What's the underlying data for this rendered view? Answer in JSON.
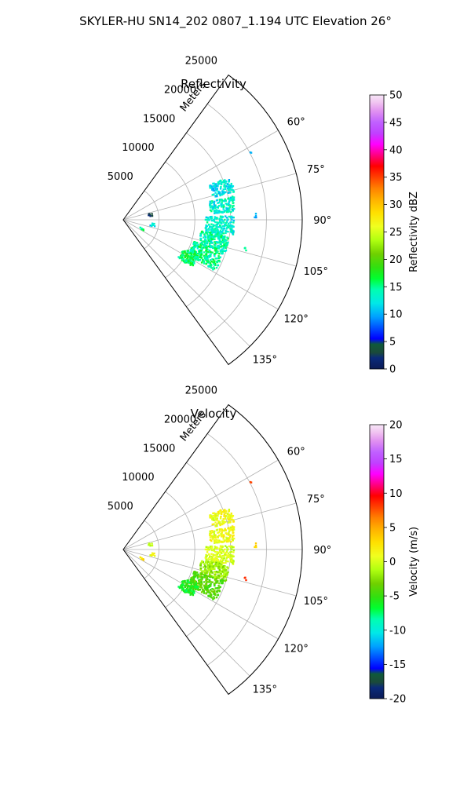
{
  "figure": {
    "title": "SKYLER-HU  SN14_202  0807_1.194 UTC Elevation 26°"
  },
  "chart_data": [
    {
      "type": "polar",
      "title": "Reflectivity",
      "radial_label": "Meters",
      "radial_ticks": [
        5000,
        10000,
        15000,
        20000,
        25000
      ],
      "angular_ticks": [
        "60°",
        "75°",
        "90°",
        "105°",
        "120°",
        "135°"
      ],
      "theta_range_deg": [
        36,
        144
      ],
      "r_max": 25000,
      "grid": true,
      "colorbar": {
        "label": "Reflectivity dBZ",
        "ticks": [
          0,
          5,
          10,
          15,
          20,
          25,
          30,
          35,
          40,
          45,
          50
        ],
        "range": [
          0,
          50
        ]
      },
      "field_note": "echo values mostly 10–15 dBZ, some near 5 dBZ",
      "echo_blobs": [
        {
          "theta": 72,
          "r": 14500,
          "dth": 4,
          "dr": 1600,
          "n": 120,
          "val": 12
        },
        {
          "theta": 82,
          "r": 14000,
          "dth": 4,
          "dr": 1800,
          "n": 140,
          "val": 13
        },
        {
          "theta": 93,
          "r": 13500,
          "dth": 5,
          "dr": 2000,
          "n": 180,
          "val": 13
        },
        {
          "theta": 103,
          "r": 13000,
          "dth": 5,
          "dr": 2000,
          "n": 200,
          "val": 14
        },
        {
          "theta": 113,
          "r": 12500,
          "dth": 6,
          "dr": 2200,
          "n": 240,
          "val": 15
        },
        {
          "theta": 120,
          "r": 10500,
          "dth": 5,
          "dr": 1200,
          "n": 100,
          "val": 16
        },
        {
          "theta": 80,
          "r": 3500,
          "dth": 3,
          "dr": 600,
          "n": 6,
          "val": 4
        },
        {
          "theta": 100,
          "r": 4000,
          "dth": 3,
          "dr": 500,
          "n": 8,
          "val": 12
        },
        {
          "theta": 115,
          "r": 3000,
          "dth": 3,
          "dr": 400,
          "n": 5,
          "val": 14
        },
        {
          "theta": 88,
          "r": 18500,
          "dth": 1,
          "dr": 200,
          "n": 4,
          "val": 11
        },
        {
          "theta": 103,
          "r": 17500,
          "dth": 1,
          "dr": 200,
          "n": 3,
          "val": 14
        },
        {
          "theta": 63,
          "r": 20000,
          "dth": 1,
          "dr": 200,
          "n": 2,
          "val": 12
        }
      ]
    },
    {
      "type": "polar",
      "title": "Velocity",
      "radial_label": "Meters",
      "radial_ticks": [
        5000,
        10000,
        15000,
        20000,
        25000
      ],
      "angular_ticks": [
        "60°",
        "75°",
        "90°",
        "105°",
        "120°",
        "135°"
      ],
      "theta_range_deg": [
        36,
        144
      ],
      "r_max": 25000,
      "grid": true,
      "colorbar": {
        "label": "Velocity (m/s)",
        "ticks": [
          -20,
          -15,
          -10,
          -5,
          0,
          5,
          10,
          15,
          20
        ],
        "range": [
          -20,
          20
        ]
      },
      "field_note": "velocities mostly 0 to 2 m/s in the north, -2 to -6 m/s in the south",
      "echo_blobs": [
        {
          "theta": 72,
          "r": 14500,
          "dth": 4,
          "dr": 1600,
          "n": 120,
          "val": 1
        },
        {
          "theta": 82,
          "r": 14000,
          "dth": 4,
          "dr": 1800,
          "n": 140,
          "val": 1
        },
        {
          "theta": 93,
          "r": 13500,
          "dth": 5,
          "dr": 2000,
          "n": 180,
          "val": 0
        },
        {
          "theta": 103,
          "r": 13000,
          "dth": 5,
          "dr": 2000,
          "n": 200,
          "val": -2
        },
        {
          "theta": 113,
          "r": 12500,
          "dth": 6,
          "dr": 2200,
          "n": 240,
          "val": -4
        },
        {
          "theta": 120,
          "r": 10500,
          "dth": 5,
          "dr": 1200,
          "n": 100,
          "val": -6
        },
        {
          "theta": 80,
          "r": 3500,
          "dth": 3,
          "dr": 600,
          "n": 6,
          "val": 0
        },
        {
          "theta": 100,
          "r": 4000,
          "dth": 3,
          "dr": 500,
          "n": 8,
          "val": 1
        },
        {
          "theta": 115,
          "r": 3000,
          "dth": 3,
          "dr": 400,
          "n": 5,
          "val": 2
        },
        {
          "theta": 88,
          "r": 18500,
          "dth": 1,
          "dr": 200,
          "n": 4,
          "val": 4
        },
        {
          "theta": 103,
          "r": 17500,
          "dth": 1,
          "dr": 200,
          "n": 3,
          "val": 8
        },
        {
          "theta": 63,
          "r": 20000,
          "dth": 1,
          "dr": 200,
          "n": 2,
          "val": 9
        }
      ]
    }
  ]
}
